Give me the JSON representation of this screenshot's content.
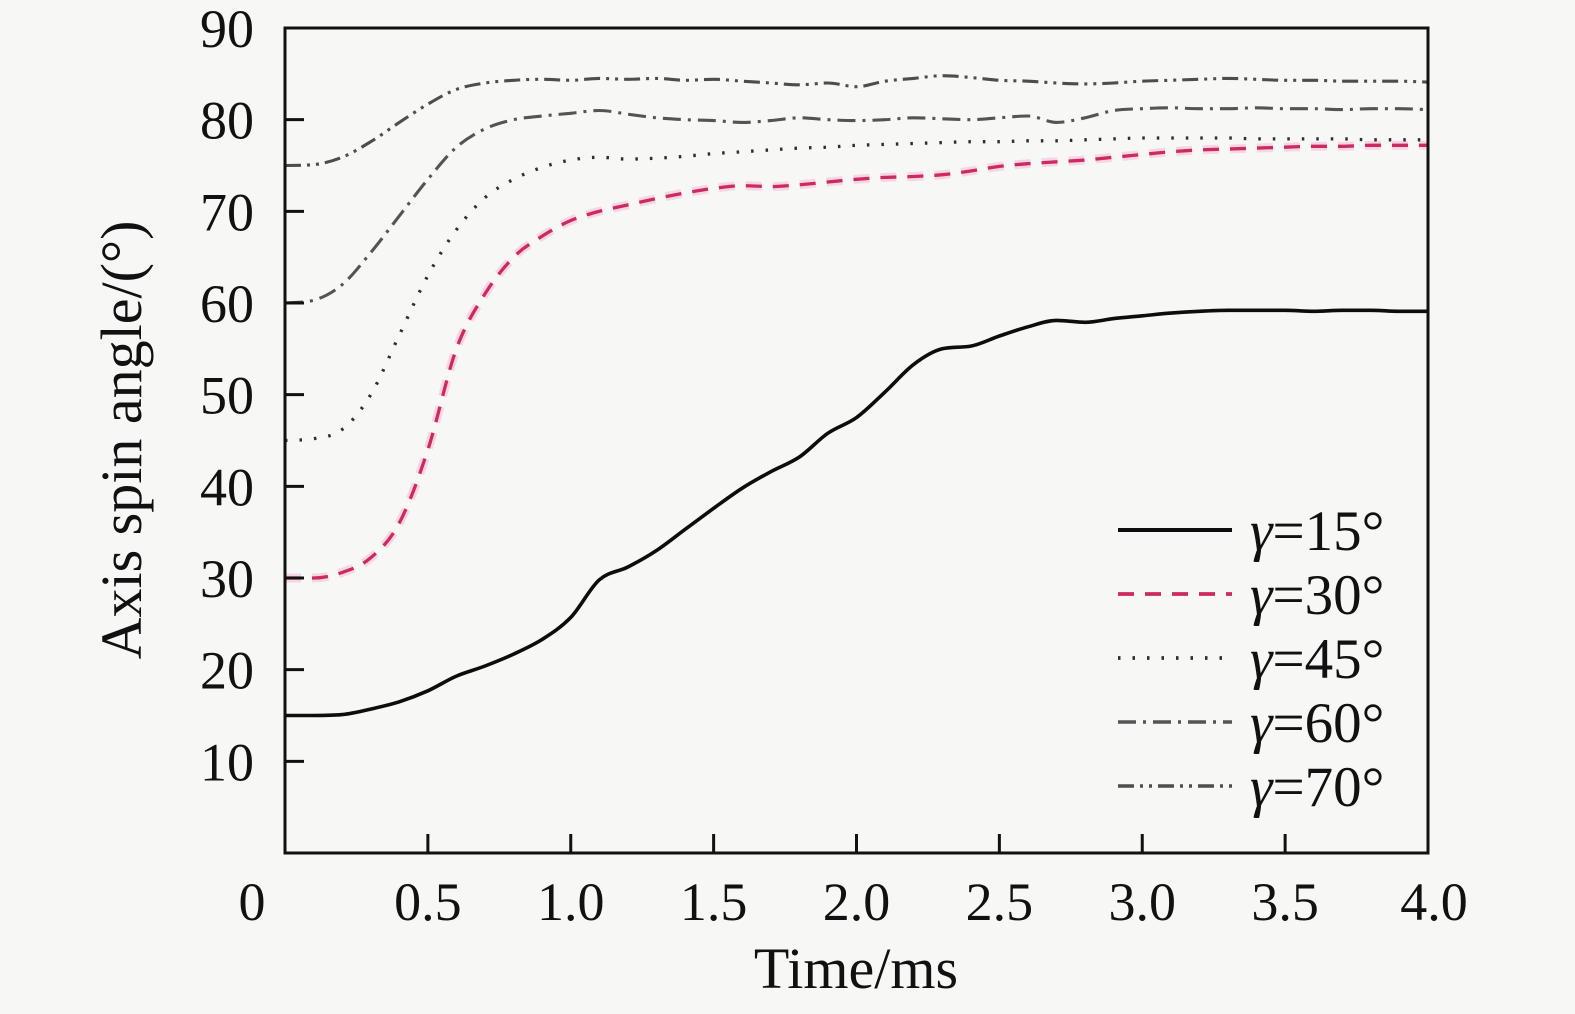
{
  "figure": {
    "background": "#f7f7f5",
    "frame_color": "#111111",
    "text_color": "#111111"
  },
  "chart_data": {
    "type": "line",
    "title": "",
    "xlabel": "Time/ms",
    "ylabel": "Axis spin angle/(°)",
    "xlim": [
      0,
      4
    ],
    "ylim": [
      0,
      90
    ],
    "grid": false,
    "legend_position": "lower right",
    "xticks": [
      0,
      0.5,
      1,
      1.5,
      2,
      2.5,
      3,
      3.5,
      4
    ],
    "xtick_labels": [
      "0",
      "0.5",
      "1.0",
      "1.5",
      "2.0",
      "2.5",
      "3.0",
      "3.5",
      "4.0"
    ],
    "yticks": [
      10,
      20,
      30,
      40,
      50,
      60,
      70,
      80,
      90
    ],
    "ytick_labels": [
      "10",
      "20",
      "30",
      "40",
      "50",
      "60",
      "70",
      "80",
      "90"
    ],
    "x": [
      0,
      0.1,
      0.2,
      0.3,
      0.4,
      0.5,
      0.6,
      0.7,
      0.8,
      0.9,
      1.0,
      1.1,
      1.2,
      1.3,
      1.4,
      1.5,
      1.6,
      1.7,
      1.8,
      1.9,
      2.0,
      2.1,
      2.2,
      2.3,
      2.4,
      2.5,
      2.6,
      2.7,
      2.8,
      2.9,
      3.0,
      3.1,
      3.2,
      3.3,
      3.4,
      3.5,
      3.6,
      3.7,
      3.8,
      3.9,
      4.0
    ],
    "series": [
      {
        "id": "gamma-15",
        "name": "γ=15°",
        "color": "#0d0d0d",
        "dash": "solid",
        "dasharray": "",
        "width": 3.6,
        "values": [
          15,
          15,
          15.1,
          15.7,
          16.5,
          17.7,
          19.3,
          20.4,
          21.7,
          23.3,
          25.7,
          29.8,
          31.2,
          33,
          35.3,
          37.6,
          39.8,
          41.6,
          43.2,
          45.8,
          47.5,
          50.3,
          53.3,
          55,
          55.3,
          56.4,
          57.4,
          58.1,
          57.9,
          58.3,
          58.6,
          58.9,
          59.1,
          59.2,
          59.2,
          59.2,
          59.1,
          59.2,
          59.2,
          59.1,
          59.1
        ]
      },
      {
        "id": "gamma-30",
        "name": "γ=30°",
        "color": "#cd2a5f",
        "halo": "#f8bcd4",
        "dash": "dashed",
        "dasharray": "16 11",
        "width": 3.3,
        "values": [
          30,
          30,
          30.6,
          32.2,
          36,
          44,
          55,
          61,
          65,
          67.3,
          69,
          70,
          70.7,
          71.4,
          72,
          72.5,
          72.8,
          72.7,
          72.9,
          73.2,
          73.5,
          73.7,
          73.8,
          74,
          74.4,
          74.9,
          75.2,
          75.4,
          75.6,
          75.9,
          76.2,
          76.5,
          76.7,
          76.8,
          76.9,
          77,
          77.1,
          77.1,
          77.2,
          77.2,
          77.2
        ]
      },
      {
        "id": "gamma-45",
        "name": "γ=45°",
        "color": "#2e2e2e",
        "dash": "dotted",
        "dasharray": "2.5 12",
        "width": 3.3,
        "values": [
          45,
          45.2,
          46.2,
          50,
          56.5,
          63,
          68,
          71.5,
          73.5,
          74.8,
          75.6,
          75.9,
          75.7,
          75.8,
          76,
          76.3,
          76.5,
          76.7,
          76.9,
          77,
          77.2,
          77.3,
          77.4,
          77.5,
          77.6,
          77.6,
          77.7,
          77.7,
          77.8,
          77.9,
          78,
          78,
          78,
          78,
          77.9,
          77.9,
          77.9,
          77.9,
          77.8,
          77.8,
          77.8
        ]
      },
      {
        "id": "gamma-60",
        "name": "γ=60°",
        "color": "#545454",
        "dash": "dash-dot",
        "dasharray": "18 7 3 7",
        "width": 3.1,
        "values": [
          60,
          60.3,
          62,
          65.5,
          69.5,
          73.5,
          77,
          79,
          80,
          80.4,
          80.7,
          81,
          80.6,
          80.2,
          80,
          79.9,
          79.7,
          79.9,
          80.2,
          80,
          79.9,
          80,
          80.2,
          80.1,
          80,
          80.2,
          80.4,
          79.7,
          80.2,
          81,
          81.2,
          81.3,
          81.2,
          81.2,
          81.3,
          81.2,
          81.2,
          81.1,
          81.2,
          81.2,
          81.1
        ]
      },
      {
        "id": "gamma-70",
        "name": "γ=70°",
        "color": "#4d4d4d",
        "dash": "dash-dot-dot",
        "dasharray": "16 6 3 6 3 6",
        "width": 3.1,
        "values": [
          75,
          75.1,
          75.9,
          77.6,
          79.7,
          81.7,
          83.3,
          84,
          84.3,
          84.4,
          84.3,
          84.5,
          84.4,
          84.5,
          84.3,
          84.4,
          84.2,
          84,
          83.8,
          84,
          83.6,
          84.2,
          84.5,
          84.8,
          84.6,
          84.3,
          84.2,
          84,
          83.9,
          84,
          84.2,
          84.3,
          84.4,
          84.5,
          84.4,
          84.3,
          84.3,
          84.2,
          84.2,
          84.2,
          84.1
        ]
      }
    ]
  }
}
